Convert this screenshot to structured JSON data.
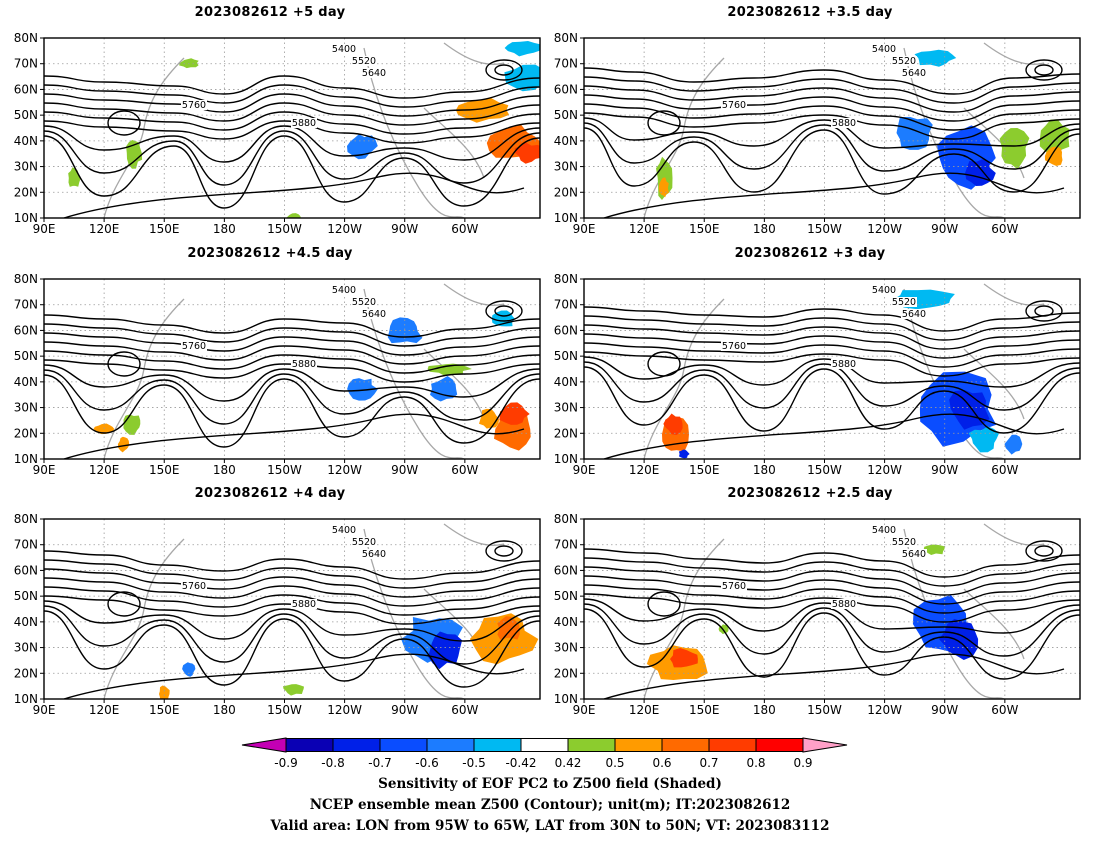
{
  "panels": [
    {
      "title": "2023082612 +5 day"
    },
    {
      "title": "2023082612 +3.5 day"
    },
    {
      "title": "2023082612 +4.5 day"
    },
    {
      "title": "2023082612 +3 day"
    },
    {
      "title": "2023082612 +4 day"
    },
    {
      "title": "2023082612 +2.5 day"
    }
  ],
  "axes": {
    "lat_labels": [
      "10N",
      "20N",
      "30N",
      "40N",
      "50N",
      "60N",
      "70N",
      "80N"
    ],
    "lon_labels": [
      "90E",
      "120E",
      "150E",
      "180",
      "150W",
      "120W",
      "90W",
      "60W"
    ]
  },
  "contour_levels": [
    "5400",
    "5520",
    "5640",
    "5760",
    "5880"
  ],
  "colorbar": {
    "levels": [
      "-0.9",
      "-0.8",
      "-0.7",
      "-0.6",
      "-0.5",
      "-0.42",
      "0.42",
      "0.5",
      "0.6",
      "0.7",
      "0.8",
      "0.9"
    ],
    "colors": [
      "#0a00b4",
      "#0020e8",
      "#0a4dff",
      "#1c7cff",
      "#00b9f2",
      "#ffffff",
      "#8ccc2e",
      "#ff9b00",
      "#ff6a00",
      "#ff3c00",
      "#ff0000"
    ],
    "low_arrow_color": "#c400b4",
    "high_arrow_color": "#ffa0c8"
  },
  "footer": {
    "line1": "Sensitivity of EOF PC2 to Z500 field (Shaded)",
    "line2": "NCEP ensemble mean Z500 (Contour); unit(m); IT:2023082612",
    "line3": "Valid area: LON from 95W to 65W, LAT from 30N to 50N; VT: 2023083112"
  }
}
